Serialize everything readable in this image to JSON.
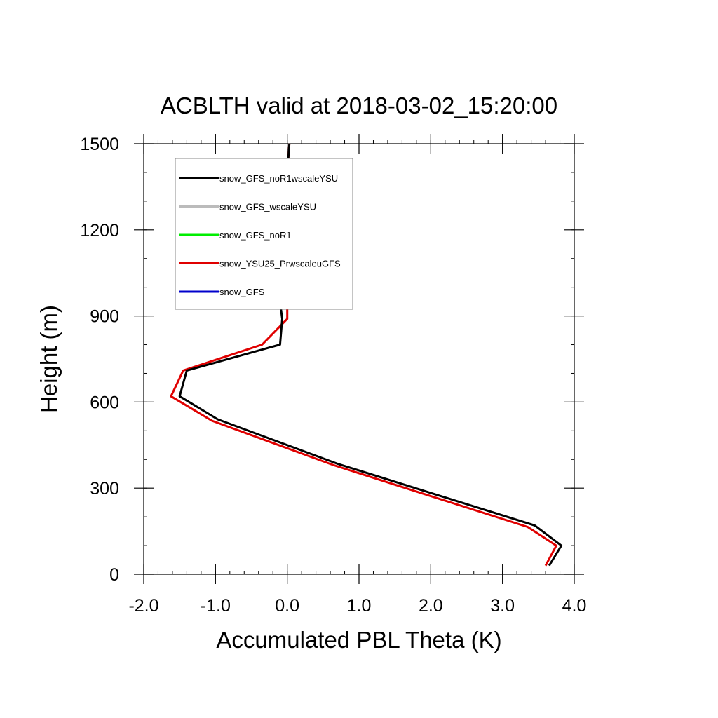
{
  "chart_data": {
    "type": "line",
    "title": "ACBLTH valid at 2018-03-02_15:20:00",
    "xlabel": "Accumulated PBL Theta (K)",
    "ylabel": "Height (m)",
    "xlim": [
      -2.0,
      4.0
    ],
    "ylim": [
      0,
      1500
    ],
    "x_ticks": [
      "-2.0",
      "-1.0",
      "0.0",
      "1.0",
      "2.0",
      "3.0",
      "4.0"
    ],
    "x_tick_values": [
      -2.0,
      -1.0,
      0.0,
      1.0,
      2.0,
      3.0,
      4.0
    ],
    "y_ticks": [
      "0",
      "300",
      "600",
      "900",
      "1200",
      "1500"
    ],
    "y_tick_values": [
      0,
      300,
      600,
      900,
      1200,
      1500
    ],
    "legend_position": "top-left",
    "series": [
      {
        "name": "snow_GFS_noR1wscaleYSU",
        "color": "#000000",
        "x": [
          3.65,
          3.82,
          3.45,
          0.7,
          -0.97,
          -1.5,
          -1.4,
          -0.1,
          -0.07,
          -0.12,
          -0.03,
          -0.01,
          0.0,
          0.03
        ],
        "y": [
          30,
          100,
          170,
          385,
          540,
          620,
          710,
          800,
          890,
          985,
          1150,
          1300,
          1400,
          1500
        ]
      },
      {
        "name": "snow_GFS_wscaleYSU",
        "color": "#bbbbbb",
        "x": [],
        "y": []
      },
      {
        "name": "snow_GFS_noR1",
        "color": "#00ee00",
        "x": [],
        "y": []
      },
      {
        "name": "snow_YSU25_PrwscaleuGFS",
        "color": "#e00000",
        "x": [
          3.6,
          3.75,
          3.35,
          0.65,
          -1.05,
          -1.62,
          -1.45,
          -0.35,
          0.0,
          0.0,
          0.0,
          0.0,
          0.0,
          0.03
        ],
        "y": [
          30,
          100,
          165,
          380,
          535,
          620,
          710,
          800,
          890,
          985,
          1150,
          1300,
          1400,
          1500
        ]
      },
      {
        "name": "snow_GFS",
        "color": "#0000cc",
        "x": [],
        "y": []
      }
    ]
  }
}
